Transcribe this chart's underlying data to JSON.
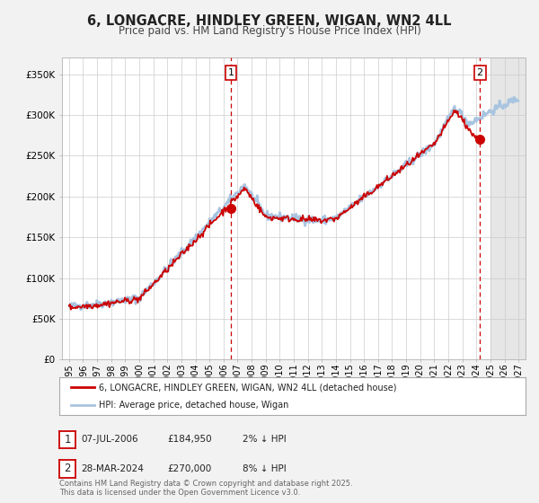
{
  "title": "6, LONGACRE, HINDLEY GREEN, WIGAN, WN2 4LL",
  "subtitle": "Price paid vs. HM Land Registry's House Price Index (HPI)",
  "background_color": "#f2f2f2",
  "plot_bg_color": "#ffffff",
  "title_fontsize": 10.5,
  "subtitle_fontsize": 8.5,
  "xlim": [
    1994.5,
    2027.5
  ],
  "ylim": [
    0,
    370000
  ],
  "yticks": [
    0,
    50000,
    100000,
    150000,
    200000,
    250000,
    300000,
    350000
  ],
  "ytick_labels": [
    "£0",
    "£50K",
    "£100K",
    "£150K",
    "£200K",
    "£250K",
    "£300K",
    "£350K"
  ],
  "xticks": [
    1995,
    1996,
    1997,
    1998,
    1999,
    2000,
    2001,
    2002,
    2003,
    2004,
    2005,
    2006,
    2007,
    2008,
    2009,
    2010,
    2011,
    2012,
    2013,
    2014,
    2015,
    2016,
    2017,
    2018,
    2019,
    2020,
    2021,
    2022,
    2023,
    2024,
    2025,
    2026,
    2027
  ],
  "sale1_x": 2006.52,
  "sale1_y": 184950,
  "sale2_x": 2024.25,
  "sale2_y": 270000,
  "hpi_color": "#a8c4e0",
  "price_color": "#cc0000",
  "legend_label_price": "6, LONGACRE, HINDLEY GREEN, WIGAN, WN2 4LL (detached house)",
  "legend_label_hpi": "HPI: Average price, detached house, Wigan",
  "table_rows": [
    {
      "num": "1",
      "date": "07-JUL-2006",
      "price": "£184,950",
      "hpi": "2% ↓ HPI"
    },
    {
      "num": "2",
      "date": "28-MAR-2024",
      "price": "£270,000",
      "hpi": "8% ↓ HPI"
    }
  ],
  "footnote": "Contains HM Land Registry data © Crown copyright and database right 2025.\nThis data is licensed under the Open Government Licence v3.0.",
  "future_shade_start": 2025.0
}
